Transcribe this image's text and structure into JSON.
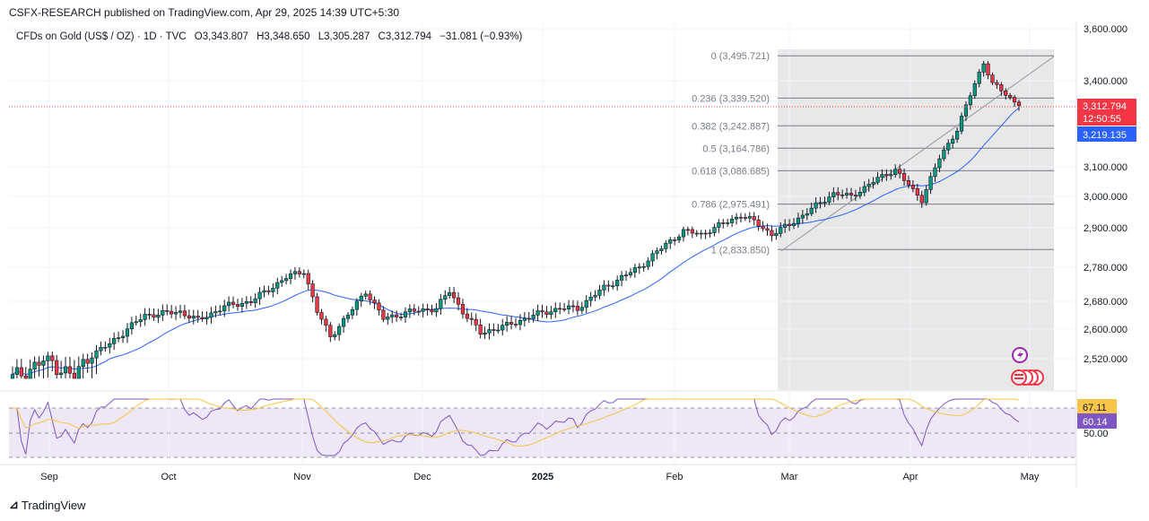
{
  "header": {
    "published_by": "CSFX-RESEARCH published on TradingView.com, Apr 29, 2025 14:39 UTC+5:30"
  },
  "legend": {
    "symbol": "CFDs on Gold (US$ / OZ) · 1D · TVC",
    "open": "O3,343.807",
    "high": "H3,348.650",
    "low": "L3,305.287",
    "close": "C3,312.794",
    "change": "−31.081 (−0.93%)"
  },
  "brand": {
    "name": "TradingView"
  },
  "colors": {
    "up": "#089981",
    "down": "#f23645",
    "ma": "#2962ff",
    "rsi": "#7e57c2",
    "rsi_ma": "#f7c548",
    "fib": "#787b86"
  },
  "chart_data": {
    "type": "candlestick",
    "y_ticks": [
      "3,600.000",
      "3,400.000",
      "3,100.000",
      "3,000.000",
      "2,900.000",
      "2,780.000",
      "2,680.000",
      "2,600.000",
      "2,520.000"
    ],
    "x_ticks": [
      "Sep",
      "Oct",
      "Nov",
      "Dec",
      "2025",
      "Feb",
      "Mar",
      "Apr",
      "May"
    ],
    "price_labels": {
      "last": "3,312.794",
      "countdown": "12:50:55",
      "ma": "3,219.135"
    },
    "fib_levels": [
      {
        "ratio": "0",
        "price": "3,495.721"
      },
      {
        "ratio": "0.236",
        "price": "3,339.520"
      },
      {
        "ratio": "0.382",
        "price": "3,242.887"
      },
      {
        "ratio": "0.5",
        "price": "3,164.786"
      },
      {
        "ratio": "0.618",
        "price": "3,086.685"
      },
      {
        "ratio": "0.786",
        "price": "2,975.491"
      },
      {
        "ratio": "1",
        "price": "2,833.850"
      }
    ],
    "rsi": {
      "value": "60.14",
      "ma_value": "67.11",
      "tick": "50.00"
    },
    "close_anchors": [
      [
        0,
        2500
      ],
      [
        8,
        2520
      ],
      [
        14,
        2500
      ],
      [
        22,
        2560
      ],
      [
        30,
        2640
      ],
      [
        38,
        2650
      ],
      [
        42,
        2625
      ],
      [
        48,
        2665
      ],
      [
        54,
        2680
      ],
      [
        62,
        2750
      ],
      [
        66,
        2770
      ],
      [
        69,
        2650
      ],
      [
        72,
        2580
      ],
      [
        76,
        2640
      ],
      [
        80,
        2710
      ],
      [
        84,
        2630
      ],
      [
        90,
        2650
      ],
      [
        96,
        2660
      ],
      [
        99,
        2710
      ],
      [
        102,
        2650
      ],
      [
        106,
        2590
      ],
      [
        112,
        2610
      ],
      [
        118,
        2640
      ],
      [
        124,
        2660
      ],
      [
        128,
        2660
      ],
      [
        134,
        2720
      ],
      [
        142,
        2780
      ],
      [
        148,
        2850
      ],
      [
        152,
        2890
      ],
      [
        156,
        2880
      ],
      [
        162,
        2920
      ],
      [
        165,
        2940
      ],
      [
        168,
        2920
      ],
      [
        172,
        2880
      ],
      [
        176,
        2910
      ],
      [
        180,
        2950
      ],
      [
        186,
        3010
      ],
      [
        190,
        3000
      ],
      [
        196,
        3060
      ],
      [
        200,
        3090
      ],
      [
        204,
        3020
      ],
      [
        206,
        2990
      ],
      [
        210,
        3130
      ],
      [
        214,
        3230
      ],
      [
        218,
        3390
      ],
      [
        220,
        3470
      ],
      [
        222,
        3390
      ],
      [
        226,
        3340
      ],
      [
        228,
        3313
      ]
    ]
  }
}
